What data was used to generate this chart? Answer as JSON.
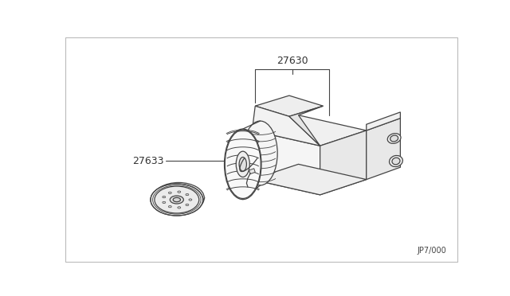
{
  "background_color": "#ffffff",
  "line_color": "#444444",
  "text_color": "#333333",
  "part_number_27630": "27630",
  "part_number_27633": "27633",
  "diagram_number": "JP7/000",
  "fig_width": 6.4,
  "fig_height": 3.72,
  "dpi": 100
}
